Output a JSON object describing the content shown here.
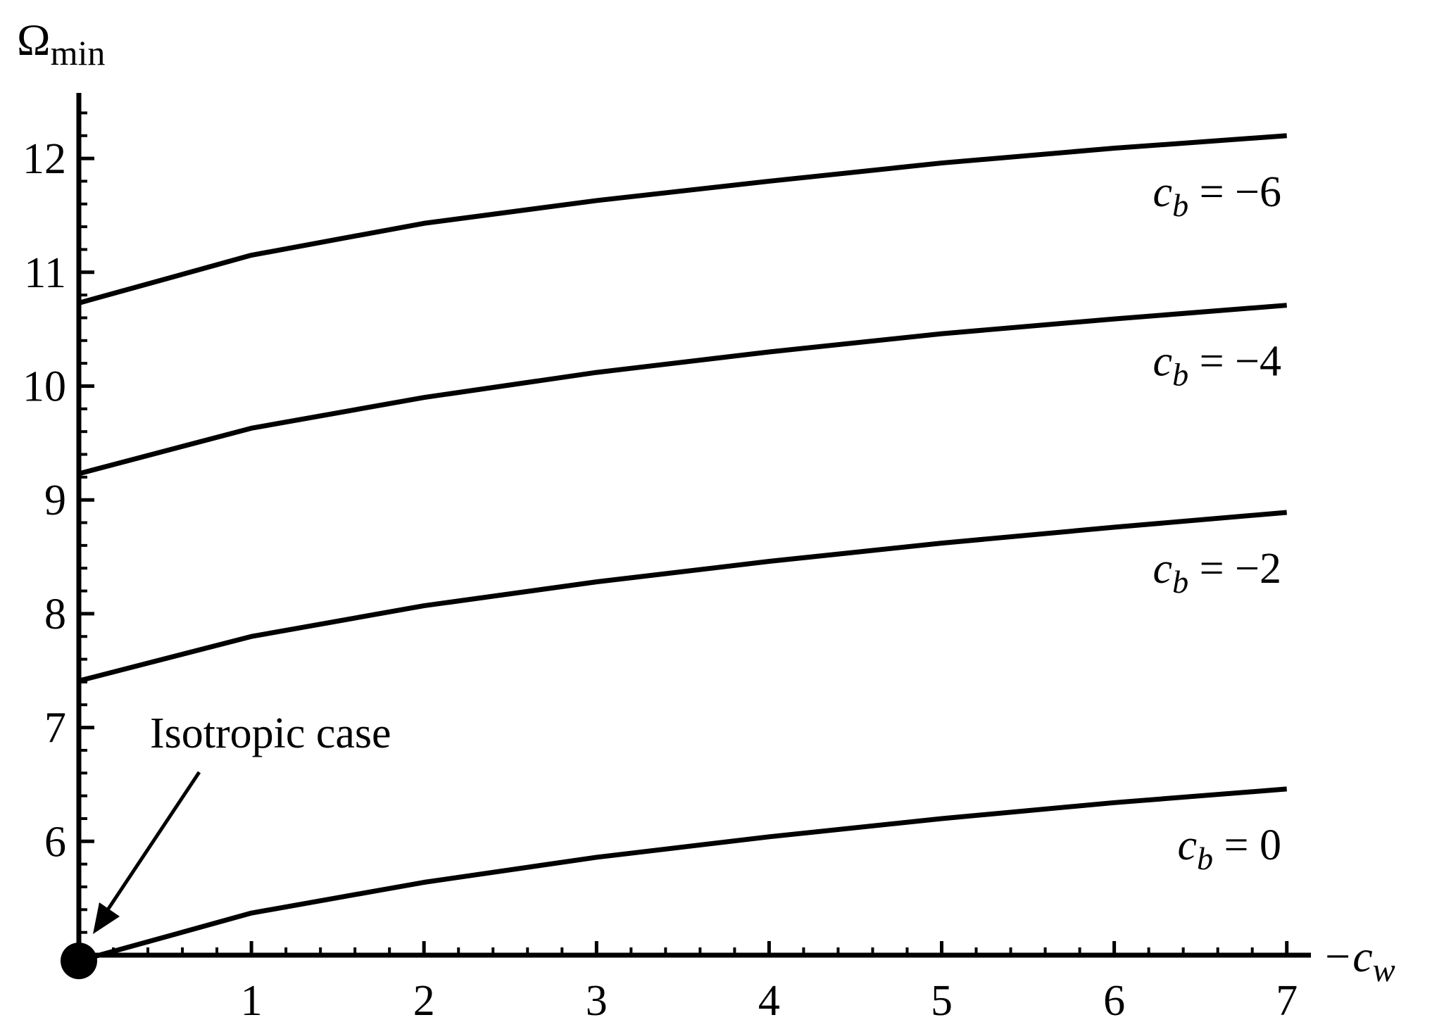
{
  "chart_data": {
    "type": "line",
    "xlabel": "−c",
    "xlabel_sub": "w",
    "ylabel": "Ω",
    "ylabel_sub": "min",
    "xlim": [
      0,
      7
    ],
    "ylim": [
      4.95,
      12.4
    ],
    "x_ticks": [
      1,
      2,
      3,
      4,
      5,
      6,
      7
    ],
    "y_ticks": [
      6,
      7,
      8,
      9,
      10,
      11,
      12
    ],
    "x": [
      0,
      1,
      2,
      3,
      4,
      5,
      6,
      7
    ],
    "series": [
      {
        "name": "c_b = −6",
        "label_lhs": "c",
        "label_sub": "b",
        "label_rhs": " = −6",
        "values": [
          10.73,
          11.15,
          11.43,
          11.63,
          11.8,
          11.96,
          12.09,
          12.2
        ]
      },
      {
        "name": "c_b = −4",
        "label_lhs": "c",
        "label_sub": "b",
        "label_rhs": " = −4",
        "values": [
          9.23,
          9.63,
          9.9,
          10.12,
          10.3,
          10.46,
          10.59,
          10.71
        ]
      },
      {
        "name": "c_b = −2",
        "label_lhs": "c",
        "label_sub": "b",
        "label_rhs": " = −2",
        "values": [
          7.41,
          7.8,
          8.07,
          8.28,
          8.46,
          8.62,
          8.76,
          8.89
        ]
      },
      {
        "name": "c_b = 0",
        "label_lhs": "c",
        "label_sub": "b",
        "label_rhs": " = 0",
        "values": [
          4.95,
          5.37,
          5.64,
          5.86,
          6.04,
          6.2,
          6.34,
          6.46
        ]
      }
    ],
    "annotation": {
      "text": "Isotropic case",
      "point": [
        0,
        4.95
      ]
    },
    "grid": false,
    "legend": "none",
    "colors": {
      "line": "#000000",
      "axis": "#000000"
    }
  }
}
